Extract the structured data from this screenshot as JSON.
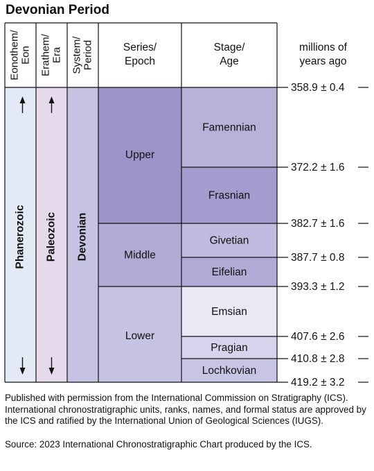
{
  "title": "Devonian Period",
  "headers": {
    "eon": [
      "Eonothem/",
      "Eon"
    ],
    "era": [
      "Erathem/",
      "Era"
    ],
    "period": [
      "System/",
      "Period"
    ],
    "series": [
      "Series/",
      "Epoch"
    ],
    "stage": [
      "Stage/",
      "Age"
    ],
    "age": [
      "millions of",
      "years ago"
    ]
  },
  "eon": "Phanerozoic",
  "era": "Paleozoic",
  "period": "Devonian",
  "series": [
    "Upper",
    "Middle",
    "Lower"
  ],
  "stages": [
    "Famennian",
    "Frasnian",
    "Givetian",
    "Eifelian",
    "Emsian",
    "Pragian",
    "Lochkovian"
  ],
  "boundaries": [
    {
      "age": "358.9",
      "err": "0.4"
    },
    {
      "age": "372.2",
      "err": "1.6"
    },
    {
      "age": "382.7",
      "err": "1.6"
    },
    {
      "age": "387.7",
      "err": "0.8"
    },
    {
      "age": "393.3",
      "err": "1.2"
    },
    {
      "age": "407.6",
      "err": "2.6"
    },
    {
      "age": "410.8",
      "err": "2.8"
    },
    {
      "age": "419.2",
      "err": "3.2"
    }
  ],
  "pm": "±",
  "colors": {
    "eon": "#e4e9f6",
    "era": "#e6d9ec",
    "period": "#c6c3e2",
    "upper": "#9e93c8",
    "middle": "#b3abd6",
    "lower": "#c6c2e2",
    "famennian": "#b8b1d8",
    "frasnian": "#a49cce",
    "givetian": "#c1bcdf",
    "eifelian": "#b1aad6",
    "emsian": "#ebe8f5",
    "pragian": "#d7d3ec",
    "lochkovian": "#c8c4e3"
  },
  "caption": "Published with permission from the International Commission on Stratigraphy (ICS). International chronostratigraphic units, ranks, names, and formal status are approved by the ICS and ratified by the International Union of Geological Sciences (IUGS).",
  "source": "Source: 2023 International Chronostratigraphic Chart produced by the ICS."
}
